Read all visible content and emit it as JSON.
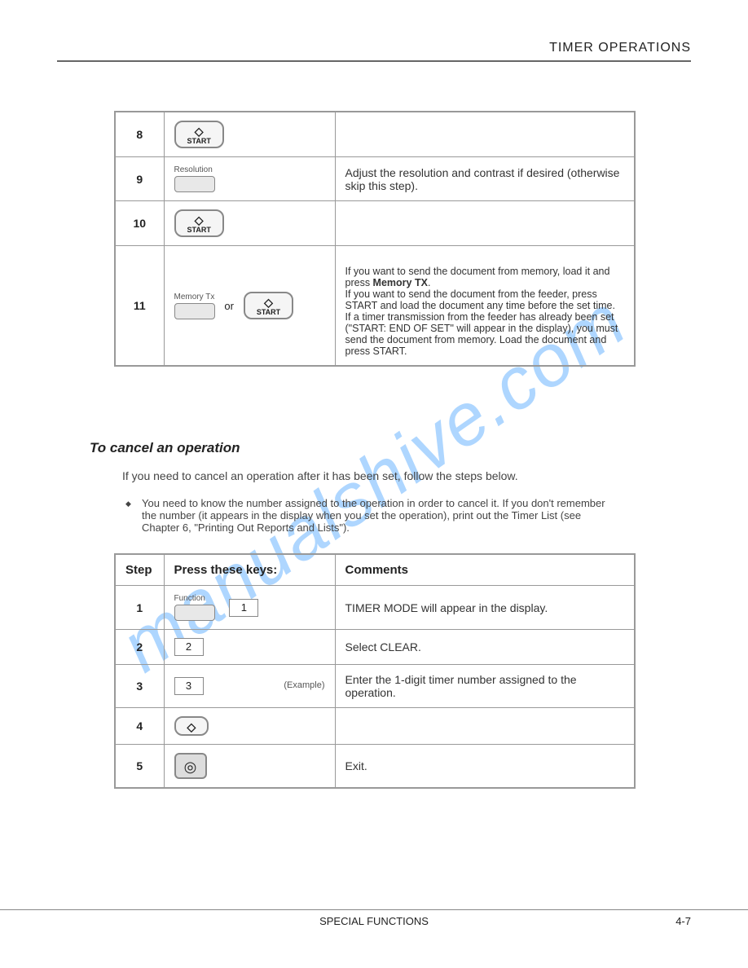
{
  "header": "TIMER OPERATIONS",
  "watermark": "manualshive.com",
  "table1": {
    "rows": [
      {
        "step": "8",
        "keys_html": "start",
        "comment": ""
      },
      {
        "step": "9",
        "keys_label": "Resolution",
        "comment": "Adjust the resolution and contrast if desired (otherwise skip this step)."
      },
      {
        "step": "10",
        "keys_html": "start",
        "comment": ""
      },
      {
        "step": "11",
        "keys_label": "Memory Tx",
        "or_text": "or",
        "comment_pre": "If you want to send the document from memory, load it and press ",
        "comment_bold": "Memory TX",
        "comment_post": ".\nIf you want to send the document from the feeder, press START and load the document any time before the set time.\nIf a timer transmission from the feeder has already been set (\"START: END OF SET\" will appear in the display), you must send the document from memory. Load the document and press START."
      }
    ]
  },
  "section_title": "To cancel an operation",
  "body_text": "If you need to cancel an operation after it has been set, follow the steps below.",
  "bullet_text": "You need to know the number assigned to the operation in order to cancel it. If you don't remember the number (it appears in the display when you set the operation), print out the Timer List (see Chapter 6, \"Printing Out Reports and Lists\").",
  "table2": {
    "headers": {
      "step": "Step",
      "keys": "Press these keys:",
      "comments": "Comments"
    },
    "rows": [
      {
        "step": "1",
        "keys_label": "Function",
        "num": "1",
        "comment": "TIMER MODE will appear in the display."
      },
      {
        "step": "2",
        "num": "2",
        "comment": "Select CLEAR."
      },
      {
        "step": "3",
        "num": "3",
        "example": "(Example)",
        "comment": "Enter the 1-digit timer number assigned to the operation."
      },
      {
        "step": "4",
        "keys_html": "start",
        "comment": ""
      },
      {
        "step": "5",
        "keys_html": "stop",
        "comment": "Exit."
      }
    ]
  },
  "footer": {
    "center": "SPECIAL FUNCTIONS",
    "right": "4-7"
  },
  "button_labels": {
    "start": "START"
  }
}
